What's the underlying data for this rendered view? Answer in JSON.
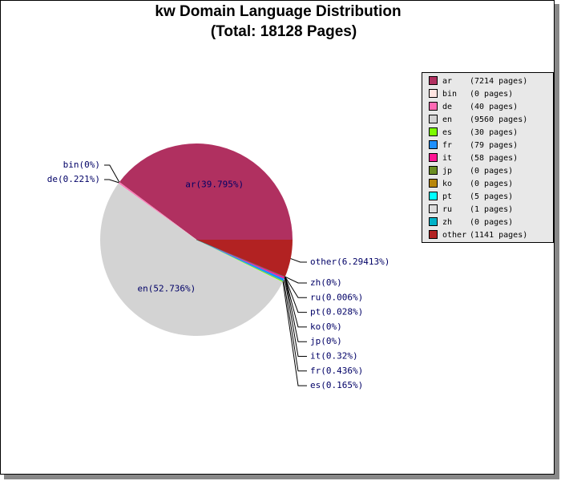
{
  "chart_data": {
    "type": "pie",
    "title": "kw Domain Language Distribution",
    "subtitle": "(Total: 18128 Pages)",
    "categories": [
      "ar",
      "bin",
      "de",
      "en",
      "es",
      "fr",
      "it",
      "jp",
      "ko",
      "pt",
      "ru",
      "zh",
      "other"
    ],
    "values": [
      39.795,
      0,
      0.221,
      52.736,
      0.165,
      0.436,
      0.32,
      0,
      0,
      0.028,
      0.006,
      0,
      6.29413
    ],
    "value_labels": [
      "ar(39.795%)",
      "bin(0%)",
      "de(0.221%)",
      "en(52.736%)",
      "es(0.165%)",
      "fr(0.436%)",
      "it(0.32%)",
      "jp(0%)",
      "ko(0%)",
      "pt(0.028%)",
      "ru(0.006%)",
      "zh(0%)",
      "other(6.29413%)"
    ],
    "legend_labels": [
      "(7214 pages)",
      "(0 pages)",
      "(40 pages)",
      "(9560 pages)",
      "(30 pages)",
      "(79 pages)",
      "(58 pages)",
      "(0 pages)",
      "(0 pages)",
      "(5 pages)",
      "(1 pages)",
      "(0 pages)",
      "(1141 pages)"
    ],
    "colors": [
      "#b03060",
      "#ffe4e1",
      "#ff69b4",
      "#d3d3d3",
      "#7cfc00",
      "#1e90ff",
      "#ff1493",
      "#6b8e23",
      "#b8860b",
      "#00ffff",
      "#dcdcdc",
      "#00b2c8",
      "#b22222"
    ],
    "legend": "right"
  }
}
